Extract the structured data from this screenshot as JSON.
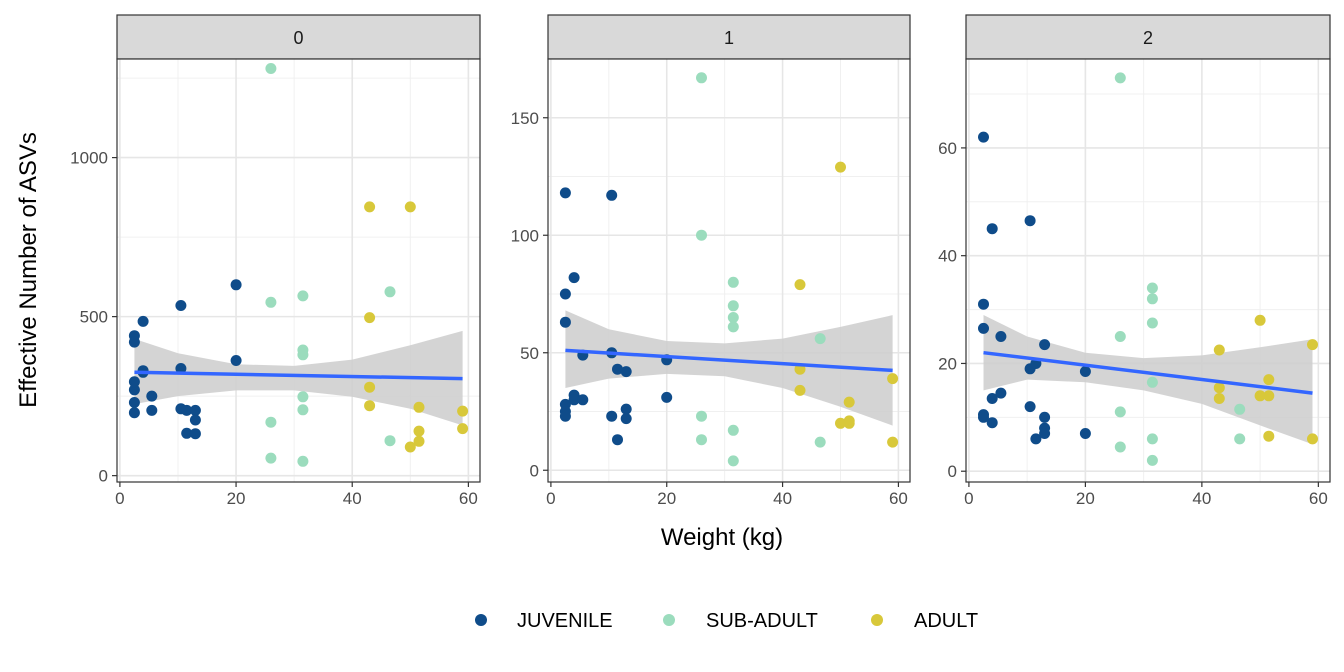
{
  "chart_data": {
    "type": "scatter",
    "xlabel": "Weight (kg)",
    "ylabel": "Effective Number of ASVs",
    "grid": true,
    "legend_position": "bottom",
    "series": [
      {
        "name": "JUVENILE",
        "color": "#0f4c8a"
      },
      {
        "name": "SUB-ADULT",
        "color": "#9bdcbd"
      },
      {
        "name": "ADULT",
        "color": "#d8c83a"
      }
    ],
    "trend_color": "#3366ff",
    "ribbon_color": "#cccccc",
    "panels": [
      {
        "label": "0",
        "xlim": [
          -0.5,
          62
        ],
        "ylim": [
          -20,
          1310
        ],
        "xticks": [
          0,
          20,
          40,
          60
        ],
        "yticks": [
          0,
          500,
          1000
        ],
        "trend": {
          "x": [
            2.5,
            59
          ],
          "y": [
            325,
            305
          ]
        },
        "ribbon": {
          "x": [
            2.5,
            10,
            20,
            30,
            40,
            50,
            59
          ],
          "upper": [
            430,
            385,
            350,
            345,
            365,
            410,
            455
          ],
          "lower": [
            225,
            250,
            268,
            268,
            248,
            210,
            158
          ]
        },
        "points": {
          "JUVENILE": [
            [
              2.5,
              440
            ],
            [
              2.5,
              420
            ],
            [
              2.5,
              270
            ],
            [
              2.5,
              295
            ],
            [
              2.5,
              230
            ],
            [
              2.5,
              198
            ],
            [
              4,
              485
            ],
            [
              4,
              330
            ],
            [
              4,
              325
            ],
            [
              5.5,
              250
            ],
            [
              5.5,
              205
            ],
            [
              10.5,
              535
            ],
            [
              10.5,
              337
            ],
            [
              10.5,
              210
            ],
            [
              11.5,
              205
            ],
            [
              11.5,
              133
            ],
            [
              13,
              205
            ],
            [
              13,
              175
            ],
            [
              13,
              132
            ],
            [
              20,
              600
            ],
            [
              20,
              362
            ]
          ],
          "SUB-ADULT": [
            [
              26,
              1280
            ],
            [
              26,
              545
            ],
            [
              26,
              168
            ],
            [
              26,
              55
            ],
            [
              31.5,
              565
            ],
            [
              31.5,
              395
            ],
            [
              31.5,
              380
            ],
            [
              31.5,
              248
            ],
            [
              31.5,
              207
            ],
            [
              31.5,
              45
            ],
            [
              46.5,
              578
            ],
            [
              46.5,
              110
            ]
          ],
          "ADULT": [
            [
              43,
              845
            ],
            [
              43,
              497
            ],
            [
              43,
              278
            ],
            [
              43,
              220
            ],
            [
              50,
              845
            ],
            [
              50,
              90
            ],
            [
              51.5,
              215
            ],
            [
              51.5,
              140
            ],
            [
              51.5,
              108
            ],
            [
              59,
              203
            ],
            [
              59,
              148
            ]
          ]
        }
      },
      {
        "label": "1",
        "xlim": [
          -0.5,
          62
        ],
        "ylim": [
          -5,
          175
        ],
        "xticks": [
          0,
          20,
          40,
          60
        ],
        "yticks": [
          0,
          50,
          100,
          150
        ],
        "trend": {
          "x": [
            2.5,
            59
          ],
          "y": [
            51,
            42.5
          ]
        },
        "ribbon": {
          "x": [
            2.5,
            10,
            20,
            30,
            40,
            50,
            59
          ],
          "upper": [
            68,
            60,
            55,
            54,
            56,
            61,
            66
          ],
          "lower": [
            35,
            39,
            41,
            40,
            35,
            27,
            19
          ]
        },
        "points": {
          "JUVENILE": [
            [
              2.5,
              118
            ],
            [
              2.5,
              75
            ],
            [
              2.5,
              63
            ],
            [
              2.5,
              28
            ],
            [
              2.5,
              25
            ],
            [
              2.5,
              23
            ],
            [
              4,
              82
            ],
            [
              4,
              32
            ],
            [
              4,
              30
            ],
            [
              5.5,
              49
            ],
            [
              5.5,
              30
            ],
            [
              10.5,
              117
            ],
            [
              10.5,
              50
            ],
            [
              10.5,
              23
            ],
            [
              11.5,
              43
            ],
            [
              11.5,
              13
            ],
            [
              13,
              42
            ],
            [
              13,
              26
            ],
            [
              13,
              22
            ],
            [
              20,
              47
            ],
            [
              20,
              31
            ]
          ],
          "SUB-ADULT": [
            [
              26,
              167
            ],
            [
              26,
              100
            ],
            [
              26,
              23
            ],
            [
              26,
              13
            ],
            [
              31.5,
              80
            ],
            [
              31.5,
              70
            ],
            [
              31.5,
              65
            ],
            [
              31.5,
              61
            ],
            [
              31.5,
              17
            ],
            [
              31.5,
              4
            ],
            [
              46.5,
              56
            ],
            [
              46.5,
              12
            ]
          ],
          "ADULT": [
            [
              43,
              79
            ],
            [
              43,
              43
            ],
            [
              43,
              34
            ],
            [
              50,
              129
            ],
            [
              50,
              20
            ],
            [
              51.5,
              29
            ],
            [
              51.5,
              21
            ],
            [
              51.5,
              20
            ],
            [
              59,
              39
            ],
            [
              59,
              12
            ]
          ]
        }
      },
      {
        "label": "2",
        "xlim": [
          -0.5,
          62
        ],
        "ylim": [
          -2,
          76.5
        ],
        "xticks": [
          0,
          20,
          40,
          60
        ],
        "yticks": [
          0,
          20,
          40,
          60
        ],
        "trend": {
          "x": [
            2.5,
            59
          ],
          "y": [
            22,
            14.5
          ]
        },
        "ribbon": {
          "x": [
            2.5,
            10,
            20,
            30,
            40,
            50,
            59
          ],
          "upper": [
            29,
            25,
            22,
            21,
            21.5,
            23,
            24.5
          ],
          "lower": [
            15,
            17,
            16.5,
            15,
            12.5,
            8.5,
            5
          ]
        },
        "points": {
          "JUVENILE": [
            [
              2.5,
              62
            ],
            [
              2.5,
              31
            ],
            [
              2.5,
              26.5
            ],
            [
              2.5,
              10.5
            ],
            [
              2.5,
              10
            ],
            [
              4,
              45
            ],
            [
              4,
              13.5
            ],
            [
              4,
              9
            ],
            [
              5.5,
              25
            ],
            [
              5.5,
              14.5
            ],
            [
              10.5,
              46.5
            ],
            [
              10.5,
              19
            ],
            [
              10.5,
              12
            ],
            [
              11.5,
              20
            ],
            [
              11.5,
              6
            ],
            [
              13,
              23.5
            ],
            [
              13,
              10
            ],
            [
              13,
              8
            ],
            [
              13,
              7
            ],
            [
              20,
              18.5
            ],
            [
              20,
              7
            ]
          ],
          "SUB-ADULT": [
            [
              26,
              73
            ],
            [
              26,
              25
            ],
            [
              26,
              11
            ],
            [
              26,
              4.5
            ],
            [
              31.5,
              34
            ],
            [
              31.5,
              32
            ],
            [
              31.5,
              27.5
            ],
            [
              31.5,
              16.5
            ],
            [
              31.5,
              6
            ],
            [
              31.5,
              2
            ],
            [
              46.5,
              11.5
            ],
            [
              46.5,
              6
            ]
          ],
          "ADULT": [
            [
              43,
              22.5
            ],
            [
              43,
              15.5
            ],
            [
              43,
              13.5
            ],
            [
              50,
              28
            ],
            [
              50,
              14
            ],
            [
              51.5,
              17
            ],
            [
              51.5,
              14
            ],
            [
              51.5,
              6.5
            ],
            [
              59,
              23.5
            ],
            [
              59,
              6
            ]
          ]
        }
      }
    ]
  }
}
